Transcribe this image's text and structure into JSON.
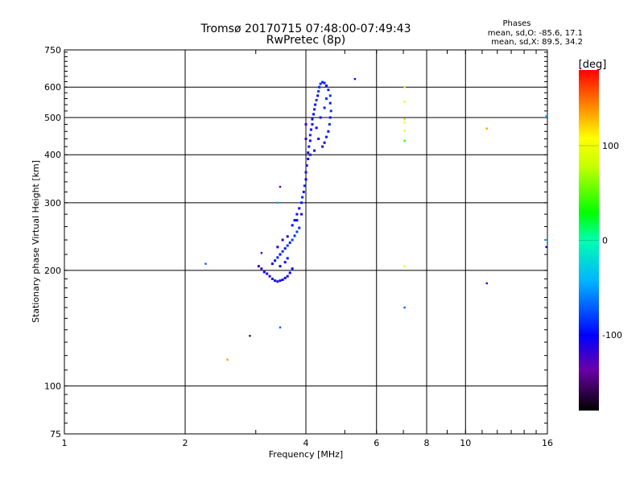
{
  "chart_data": {
    "type": "scatter",
    "title": "Tromsø 20170715 07:48:00-07:49:43",
    "subtitle": "RwPretec (8p)",
    "xlabel": "Frequency [MHz]",
    "ylabel": "Stationary phase Virtual Height [km]",
    "x_scale": "log",
    "y_scale": "log",
    "xlim": [
      1,
      16
    ],
    "ylim": [
      75,
      750
    ],
    "x_ticks": [
      1,
      2,
      4,
      6,
      8,
      10,
      16
    ],
    "x_tick_labels": [
      "1",
      "2",
      "4",
      "6",
      "8",
      "10",
      "16"
    ],
    "y_ticks": [
      75,
      100,
      200,
      300,
      400,
      500,
      600,
      750
    ],
    "y_tick_labels": [
      "75",
      "100",
      "200",
      "300",
      "400",
      "500",
      "600",
      "750"
    ],
    "grid": true,
    "stats": {
      "heading": "Phases",
      "line1": "mean, sd,O: -85.6, 17.1",
      "line2": "mean, sd,X:  89.5, 34.2"
    },
    "colorbar": {
      "label": "[deg]",
      "range": [
        -180,
        180
      ],
      "ticks": [
        100,
        0,
        -100
      ],
      "tick_labels": [
        "100",
        "0",
        "-100"
      ]
    },
    "series": [
      {
        "values": [
          {
            "x": 3.05,
            "y": 205,
            "p": -115
          },
          {
            "x": 3.1,
            "y": 202,
            "p": -125
          },
          {
            "x": 3.15,
            "y": 198,
            "p": -105
          },
          {
            "x": 3.2,
            "y": 196,
            "p": -110
          },
          {
            "x": 3.25,
            "y": 193,
            "p": -118
          },
          {
            "x": 3.3,
            "y": 190,
            "p": -108
          },
          {
            "x": 3.35,
            "y": 188,
            "p": -100
          },
          {
            "x": 3.4,
            "y": 187,
            "p": -112
          },
          {
            "x": 3.45,
            "y": 188,
            "p": -95
          },
          {
            "x": 3.5,
            "y": 189,
            "p": -105
          },
          {
            "x": 3.55,
            "y": 191,
            "p": -98
          },
          {
            "x": 3.6,
            "y": 193,
            "p": -110
          },
          {
            "x": 3.65,
            "y": 197,
            "p": -102
          },
          {
            "x": 3.7,
            "y": 202,
            "p": -96
          },
          {
            "x": 3.3,
            "y": 208,
            "p": -110
          },
          {
            "x": 3.35,
            "y": 212,
            "p": -104
          },
          {
            "x": 3.4,
            "y": 216,
            "p": -92
          },
          {
            "x": 3.45,
            "y": 220,
            "p": -100
          },
          {
            "x": 3.5,
            "y": 224,
            "p": -88
          },
          {
            "x": 3.55,
            "y": 228,
            "p": -96
          },
          {
            "x": 3.6,
            "y": 232,
            "p": -84
          },
          {
            "x": 3.65,
            "y": 236,
            "p": -90
          },
          {
            "x": 3.7,
            "y": 240,
            "p": -80
          },
          {
            "x": 3.75,
            "y": 246,
            "p": -86
          },
          {
            "x": 3.8,
            "y": 252,
            "p": -78
          },
          {
            "x": 3.85,
            "y": 258,
            "p": -90
          },
          {
            "x": 3.4,
            "y": 230,
            "p": -110
          },
          {
            "x": 3.5,
            "y": 240,
            "p": -115
          },
          {
            "x": 3.6,
            "y": 245,
            "p": -108
          },
          {
            "x": 3.7,
            "y": 262,
            "p": -100
          },
          {
            "x": 3.75,
            "y": 270,
            "p": -105
          },
          {
            "x": 3.8,
            "y": 280,
            "p": -95
          },
          {
            "x": 3.85,
            "y": 290,
            "p": -100
          },
          {
            "x": 3.9,
            "y": 300,
            "p": -92
          },
          {
            "x": 3.92,
            "y": 310,
            "p": -88
          },
          {
            "x": 3.95,
            "y": 320,
            "p": -98
          },
          {
            "x": 3.97,
            "y": 332,
            "p": -90
          },
          {
            "x": 4.0,
            "y": 345,
            "p": -102
          },
          {
            "x": 4.0,
            "y": 360,
            "p": -95
          },
          {
            "x": 4.02,
            "y": 375,
            "p": -108
          },
          {
            "x": 4.05,
            "y": 390,
            "p": -100
          },
          {
            "x": 4.05,
            "y": 405,
            "p": -110
          },
          {
            "x": 4.07,
            "y": 420,
            "p": -96
          },
          {
            "x": 4.1,
            "y": 435,
            "p": -104
          },
          {
            "x": 4.1,
            "y": 450,
            "p": -90
          },
          {
            "x": 4.12,
            "y": 465,
            "p": -100
          },
          {
            "x": 4.15,
            "y": 480,
            "p": -94
          },
          {
            "x": 4.15,
            "y": 495,
            "p": -108
          },
          {
            "x": 4.18,
            "y": 510,
            "p": -100
          },
          {
            "x": 4.2,
            "y": 525,
            "p": -92
          },
          {
            "x": 4.22,
            "y": 540,
            "p": -98
          },
          {
            "x": 4.25,
            "y": 555,
            "p": -86
          },
          {
            "x": 4.28,
            "y": 570,
            "p": -95
          },
          {
            "x": 4.3,
            "y": 585,
            "p": -82
          },
          {
            "x": 4.32,
            "y": 600,
            "p": -90
          },
          {
            "x": 4.35,
            "y": 612,
            "p": -85
          },
          {
            "x": 4.4,
            "y": 618,
            "p": -92
          },
          {
            "x": 4.45,
            "y": 615,
            "p": -88
          },
          {
            "x": 4.5,
            "y": 605,
            "p": -96
          },
          {
            "x": 4.55,
            "y": 590,
            "p": -90
          },
          {
            "x": 4.6,
            "y": 570,
            "p": -84
          },
          {
            "x": 4.6,
            "y": 545,
            "p": -92
          },
          {
            "x": 4.62,
            "y": 520,
            "p": -86
          },
          {
            "x": 4.6,
            "y": 500,
            "p": -95
          },
          {
            "x": 4.58,
            "y": 480,
            "p": -88
          },
          {
            "x": 4.55,
            "y": 460,
            "p": -100
          },
          {
            "x": 4.5,
            "y": 445,
            "p": -92
          },
          {
            "x": 4.45,
            "y": 430,
            "p": -104
          },
          {
            "x": 4.4,
            "y": 420,
            "p": -96
          },
          {
            "x": 4.3,
            "y": 440,
            "p": -110
          },
          {
            "x": 4.25,
            "y": 470,
            "p": -100
          },
          {
            "x": 4.35,
            "y": 500,
            "p": -95
          },
          {
            "x": 4.45,
            "y": 530,
            "p": -90
          },
          {
            "x": 4.5,
            "y": 560,
            "p": -86
          },
          {
            "x": 4.2,
            "y": 410,
            "p": -112
          },
          {
            "x": 4.1,
            "y": 400,
            "p": -118
          },
          {
            "x": 4.0,
            "y": 440,
            "p": -122
          },
          {
            "x": 4.0,
            "y": 480,
            "p": -120
          },
          {
            "x": 3.9,
            "y": 280,
            "p": -112
          },
          {
            "x": 3.8,
            "y": 270,
            "p": -100
          },
          {
            "x": 3.6,
            "y": 215,
            "p": -95
          },
          {
            "x": 3.55,
            "y": 210,
            "p": -100
          },
          {
            "x": 3.45,
            "y": 205,
            "p": -105
          }
        ]
      }
    ],
    "outliers": [
      {
        "x": 5.3,
        "y": 630,
        "p": -100
      },
      {
        "x": 2.25,
        "y": 208,
        "p": -70
      },
      {
        "x": 2.55,
        "y": 117,
        "p": 135
      },
      {
        "x": 2.9,
        "y": 135,
        "p": -150
      },
      {
        "x": 3.1,
        "y": 222,
        "p": -115
      },
      {
        "x": 3.4,
        "y": 300,
        "p": -40
      },
      {
        "x": 3.45,
        "y": 330,
        "p": -125
      },
      {
        "x": 3.45,
        "y": 142,
        "p": -70
      },
      {
        "x": 7.05,
        "y": 600,
        "p": 80
      },
      {
        "x": 7.05,
        "y": 550,
        "p": 100
      },
      {
        "x": 7.05,
        "y": 495,
        "p": 120
      },
      {
        "x": 7.05,
        "y": 485,
        "p": 105
      },
      {
        "x": 7.05,
        "y": 462,
        "p": 95
      },
      {
        "x": 7.05,
        "y": 435,
        "p": 40
      },
      {
        "x": 7.05,
        "y": 205,
        "p": 100
      },
      {
        "x": 7.05,
        "y": 160,
        "p": -70
      },
      {
        "x": 11.3,
        "y": 468,
        "p": 135
      },
      {
        "x": 11.3,
        "y": 185,
        "p": -110
      },
      {
        "x": 15.9,
        "y": 505,
        "p": -40
      },
      {
        "x": 15.9,
        "y": 240,
        "p": -40
      },
      {
        "x": 15.9,
        "y": 230,
        "p": -100
      }
    ]
  }
}
